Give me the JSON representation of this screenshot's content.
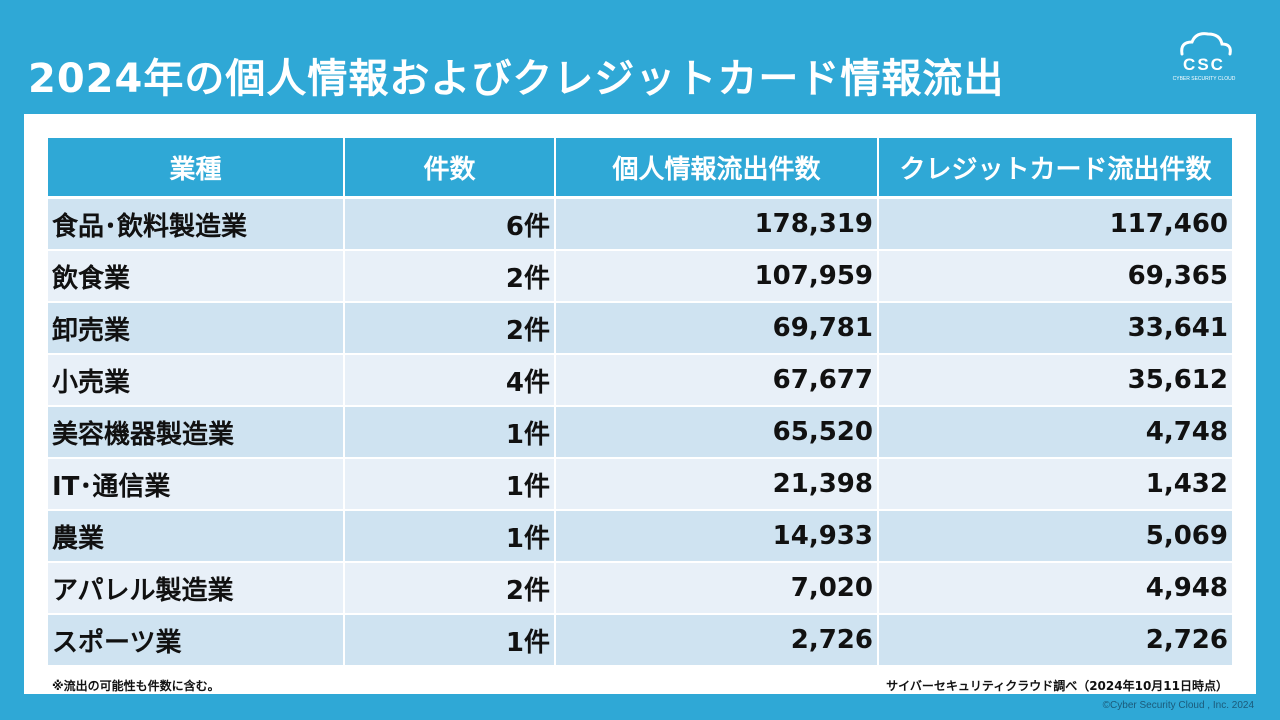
{
  "title": "2024年の個人情報およびクレジットカード情報流出",
  "logo": {
    "text": "CSC",
    "subtext": "CYBER SECURITY CLOUD"
  },
  "table": {
    "headers": [
      "業種",
      "件数",
      "個人情報流出件数",
      "クレジットカード流出件数"
    ],
    "rows": [
      [
        "食品･飲料製造業",
        "6件",
        "178,319",
        "117,460"
      ],
      [
        "飲食業",
        "2件",
        "107,959",
        "69,365"
      ],
      [
        "卸売業",
        "2件",
        "69,781",
        "33,641"
      ],
      [
        "小売業",
        "4件",
        "67,677",
        "35,612"
      ],
      [
        "美容機器製造業",
        "1件",
        "65,520",
        "4,748"
      ],
      [
        "IT･通信業",
        "1件",
        "21,398",
        "1,432"
      ],
      [
        "農業",
        "1件",
        "14,933",
        "5,069"
      ],
      [
        "アパレル製造業",
        "2件",
        "7,020",
        "4,948"
      ],
      [
        "スポーツ業",
        "1件",
        "2,726",
        "2,726"
      ]
    ]
  },
  "footnote_left": "※流出の可能性も件数に含む。",
  "footnote_right": "サイバーセキュリティクラウド調べ（2024年10月11日時点）",
  "copyright": "©Cyber Security Cloud , Inc. 2024",
  "colors": {
    "background": "#2fa8d6",
    "header": "#2fa8d6",
    "row_odd": "#cfe3f1",
    "row_even": "#e8f0f8"
  }
}
